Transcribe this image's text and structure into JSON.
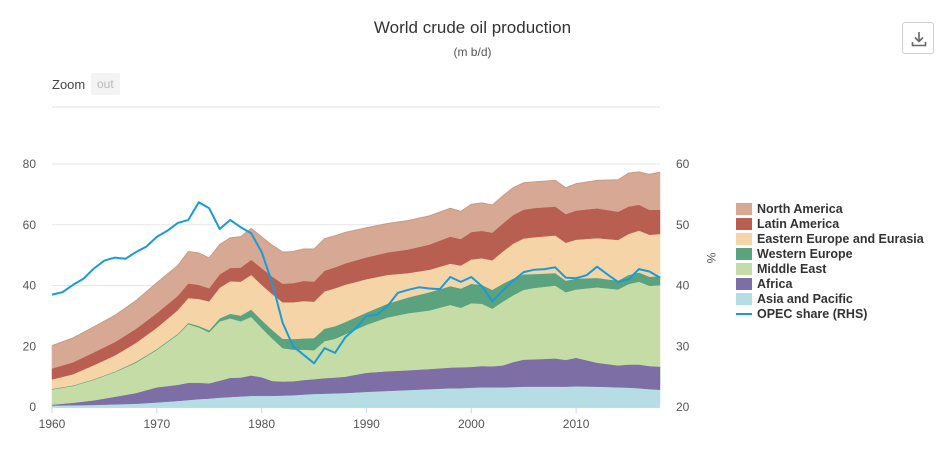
{
  "header": {
    "title": "World crude oil production",
    "subtitle": "(m b/d)"
  },
  "zoom": {
    "label": "Zoom",
    "out_label": "out"
  },
  "export_icon": "download-icon",
  "chart_data": {
    "type": "area",
    "stacked": true,
    "title": "World crude oil production",
    "subtitle": "(m b/d)",
    "xlabel": "",
    "ylabel": "",
    "y2label": "%",
    "xlim": [
      1960,
      2018
    ],
    "ylim": [
      0,
      80
    ],
    "y2lim": [
      20,
      60
    ],
    "x_ticks": [
      1960,
      1970,
      1980,
      1990,
      2000,
      2010
    ],
    "y_ticks": [
      0,
      20,
      40,
      60,
      80
    ],
    "y2_ticks": [
      20,
      30,
      40,
      50,
      60
    ],
    "grid": "horizontal",
    "legend_position": "right",
    "x": [
      1960,
      1962,
      1964,
      1966,
      1968,
      1970,
      1972,
      1973,
      1974,
      1975,
      1976,
      1977,
      1978,
      1979,
      1980,
      1981,
      1982,
      1983,
      1984,
      1985,
      1986,
      1987,
      1988,
      1990,
      1992,
      1994,
      1996,
      1998,
      1999,
      2000,
      2001,
      2002,
      2003,
      2004,
      2005,
      2006,
      2008,
      2009,
      2010,
      2012,
      2014,
      2015,
      2016,
      2017,
      2018
    ],
    "series": [
      {
        "name": "Asia and Pacific",
        "color": "#b7dde4",
        "values": [
          0.5,
          0.6,
          0.7,
          0.9,
          1.1,
          1.5,
          2.0,
          2.3,
          2.6,
          2.8,
          3.1,
          3.3,
          3.5,
          3.7,
          3.7,
          3.7,
          3.8,
          3.9,
          4.1,
          4.3,
          4.4,
          4.5,
          4.6,
          5.0,
          5.3,
          5.6,
          5.9,
          6.2,
          6.2,
          6.4,
          6.5,
          6.5,
          6.5,
          6.6,
          6.7,
          6.7,
          6.7,
          6.7,
          6.8,
          6.7,
          6.5,
          6.4,
          6.2,
          5.9,
          5.7
        ]
      },
      {
        "name": "Africa",
        "color": "#7d6fa6",
        "values": [
          0.3,
          0.8,
          1.5,
          2.5,
          3.5,
          5.0,
          5.3,
          5.7,
          5.4,
          5.0,
          5.6,
          6.3,
          6.2,
          6.7,
          6.1,
          4.9,
          4.6,
          4.6,
          4.8,
          4.9,
          5.1,
          5.2,
          5.4,
          6.3,
          6.5,
          6.5,
          6.6,
          6.8,
          6.9,
          6.8,
          7.0,
          6.9,
          7.2,
          8.2,
          8.9,
          9.0,
          9.3,
          8.8,
          9.4,
          7.9,
          7.2,
          7.6,
          7.8,
          7.6,
          7.6
        ]
      },
      {
        "name": "Middle East",
        "color": "#c5dca7",
        "values": [
          5.0,
          5.5,
          6.8,
          8.1,
          10.0,
          12.3,
          16.5,
          19.3,
          18.2,
          16.8,
          19.5,
          19.6,
          18.5,
          19.3,
          16.2,
          14.0,
          11.0,
          10.4,
          10.0,
          9.5,
          12.2,
          12.8,
          14.0,
          15.8,
          17.7,
          18.8,
          19.3,
          20.6,
          19.6,
          21.0,
          20.5,
          19.0,
          21.0,
          22.0,
          23.0,
          23.5,
          24.0,
          22.3,
          22.5,
          24.8,
          25.0,
          26.5,
          27.3,
          26.4,
          26.8
        ]
      },
      {
        "name": "Western Europe",
        "color": "#5ba27e",
        "values": [
          0.2,
          0.2,
          0.2,
          0.2,
          0.3,
          0.3,
          0.3,
          0.4,
          0.5,
          0.7,
          1.0,
          1.5,
          1.9,
          2.4,
          2.6,
          2.8,
          3.1,
          3.5,
          3.7,
          4.0,
          4.1,
          4.1,
          4.0,
          4.0,
          4.5,
          5.2,
          6.0,
          6.2,
          6.3,
          6.4,
          6.2,
          6.2,
          5.9,
          5.5,
          5.1,
          4.6,
          4.1,
          3.8,
          3.6,
          3.1,
          2.9,
          3.0,
          3.0,
          3.0,
          3.0
        ]
      },
      {
        "name": "Eastern Europe and Eurasia",
        "color": "#f5d5a8",
        "values": [
          3.1,
          3.7,
          4.6,
          5.3,
          6.2,
          7.0,
          7.8,
          8.2,
          8.9,
          9.5,
          10.1,
          10.7,
          11.2,
          11.4,
          11.6,
          11.8,
          12.0,
          12.1,
          12.3,
          12.0,
          12.3,
          12.5,
          12.3,
          11.0,
          9.5,
          8.0,
          7.4,
          7.4,
          7.6,
          8.0,
          8.8,
          9.7,
          10.6,
          11.5,
          11.8,
          12.1,
          12.4,
          12.5,
          12.8,
          13.1,
          13.4,
          13.5,
          13.8,
          13.8,
          13.9
        ]
      },
      {
        "name": "Latin America",
        "color": "#b85f52",
        "values": [
          3.6,
          3.9,
          4.2,
          4.4,
          4.6,
          4.8,
          4.7,
          4.8,
          4.6,
          4.3,
          4.4,
          4.4,
          4.6,
          5.0,
          5.5,
          5.8,
          6.1,
          6.3,
          6.6,
          6.6,
          6.8,
          6.9,
          7.0,
          7.2,
          7.4,
          7.8,
          8.3,
          8.9,
          8.7,
          9.0,
          9.0,
          9.1,
          9.2,
          9.4,
          9.5,
          9.6,
          9.5,
          9.4,
          9.6,
          9.8,
          9.3,
          9.0,
          8.5,
          8.2,
          8.0
        ]
      },
      {
        "name": "North America",
        "color": "#d7a894",
        "values": [
          7.5,
          8.0,
          8.4,
          8.8,
          9.3,
          10.0,
          10.0,
          10.5,
          10.5,
          10.0,
          9.8,
          9.9,
          10.2,
          10.3,
          10.3,
          10.3,
          10.4,
          10.4,
          10.5,
          10.7,
          10.5,
          10.4,
          10.2,
          9.7,
          9.5,
          9.5,
          9.4,
          9.3,
          9.1,
          9.1,
          9.2,
          9.1,
          9.1,
          9.0,
          8.8,
          8.6,
          8.6,
          8.7,
          8.8,
          9.2,
          10.5,
          11.0,
          10.8,
          11.7,
          12.3
        ]
      }
    ],
    "line_series": {
      "name": "OPEC share (RHS)",
      "color": "#1a9bd7",
      "axis": "right",
      "x": [
        1960,
        1961,
        1962,
        1963,
        1964,
        1965,
        1966,
        1967,
        1968,
        1969,
        1970,
        1971,
        1972,
        1973,
        1974,
        1975,
        1976,
        1977,
        1978,
        1979,
        1980,
        1981,
        1982,
        1983,
        1984,
        1985,
        1986,
        1987,
        1988,
        1989,
        1990,
        1991,
        1992,
        1993,
        1994,
        1995,
        1996,
        1997,
        1998,
        1999,
        2000,
        2001,
        2002,
        2003,
        2004,
        2005,
        2006,
        2007,
        2008,
        2009,
        2010,
        2011,
        2012,
        2013,
        2014,
        2015,
        2016,
        2017,
        2018
      ],
      "values": [
        38.5,
        38.9,
        40.1,
        41.1,
        42.8,
        44.1,
        44.6,
        44.4,
        45.5,
        46.4,
        48.0,
        49.0,
        50.3,
        50.8,
        53.7,
        52.7,
        49.3,
        50.8,
        49.6,
        48.6,
        45.5,
        40.5,
        33.9,
        30.0,
        28.6,
        27.2,
        29.7,
        28.9,
        31.5,
        33.0,
        35.0,
        35.2,
        36.6,
        38.8,
        39.3,
        39.7,
        39.5,
        39.4,
        41.4,
        40.6,
        41.4,
        39.9,
        37.4,
        39.2,
        40.8,
        42.2,
        42.6,
        42.7,
        43.0,
        41.3,
        41.2,
        41.7,
        43.1,
        41.8,
        40.6,
        41.0,
        42.7,
        42.3,
        41.3
      ]
    }
  }
}
